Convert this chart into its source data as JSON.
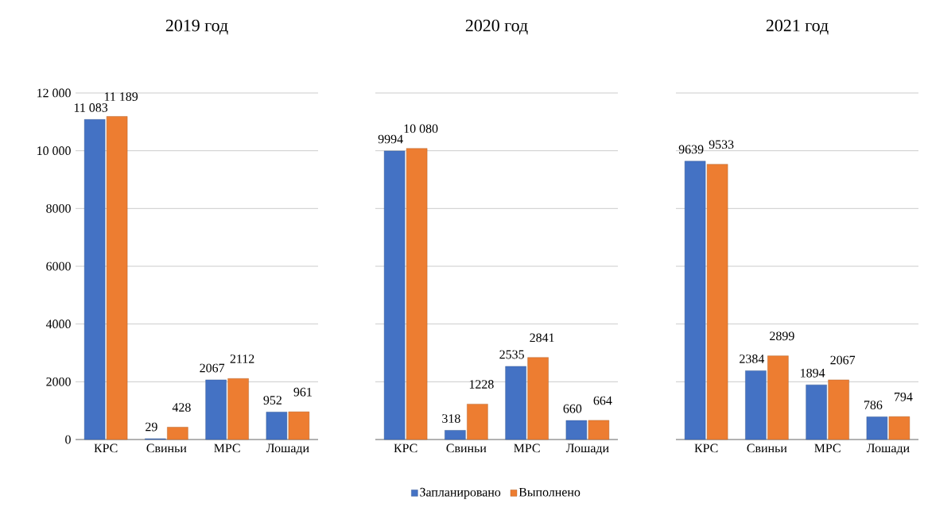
{
  "chart_data": [
    {
      "type": "bar",
      "title": "2019 год",
      "categories": [
        "КРС",
        "Свиньи",
        "МРС",
        "Лошади"
      ],
      "ylim": [
        0,
        12000
      ],
      "yticks": [
        0,
        {
          "value": 2000,
          "label": "2000"
        },
        {
          "value": 4000,
          "label": "4000"
        },
        {
          "value": 6000,
          "label": "6000"
        },
        {
          "value": 8000,
          "label": "8000"
        },
        {
          "value": 10000,
          "label": "10 000"
        },
        {
          "value": 12000,
          "label": "12 000"
        }
      ],
      "grid": "y",
      "series": [
        {
          "color": "#4472c4",
          "values": [
            11083,
            29,
            2067,
            952
          ],
          "value_labels": [
            "11 083",
            "29",
            "2067",
            "952"
          ]
        },
        {
          "color": "#ed7d31",
          "values": [
            11189,
            428,
            2112,
            961
          ],
          "value_labels": [
            "11 189",
            "428",
            "2112",
            "961"
          ]
        }
      ]
    },
    {
      "type": "bar",
      "title": "2020 год",
      "categories": [
        "КРС",
        "Свиньи",
        "МРС",
        "Лошади"
      ],
      "ylim": [
        0,
        12000
      ],
      "grid": "y",
      "tick_labels": "x",
      "legend": "bottom",
      "series": [
        {
          "name": "Запланировано",
          "color": "#4472c4",
          "values": [
            9994,
            318,
            2535,
            660
          ],
          "value_labels": [
            "9994",
            "318",
            "2535",
            "660"
          ]
        },
        {
          "name": "Выполнено",
          "color": "#ed7d31",
          "values": [
            10080,
            1228,
            2841,
            664
          ],
          "value_labels": [
            "10 080",
            "1228",
            "2841",
            "664"
          ]
        }
      ]
    },
    {
      "type": "bar",
      "title": "2021 год",
      "categories": [
        "КРС",
        "Свиньи",
        "МРС",
        "Лошади"
      ],
      "ylim": [
        0,
        12000
      ],
      "grid": "y",
      "tick_labels": "x",
      "series": [
        {
          "color": "#4472c4",
          "values": [
            9639,
            2384,
            1894,
            786
          ],
          "value_labels": [
            "9639",
            "2384",
            "1894",
            "786"
          ]
        },
        {
          "color": "#ed7d31",
          "values": [
            9533,
            2899,
            2067,
            794
          ],
          "value_labels": [
            "9533",
            "2899",
            "2067",
            "794"
          ]
        }
      ]
    }
  ]
}
